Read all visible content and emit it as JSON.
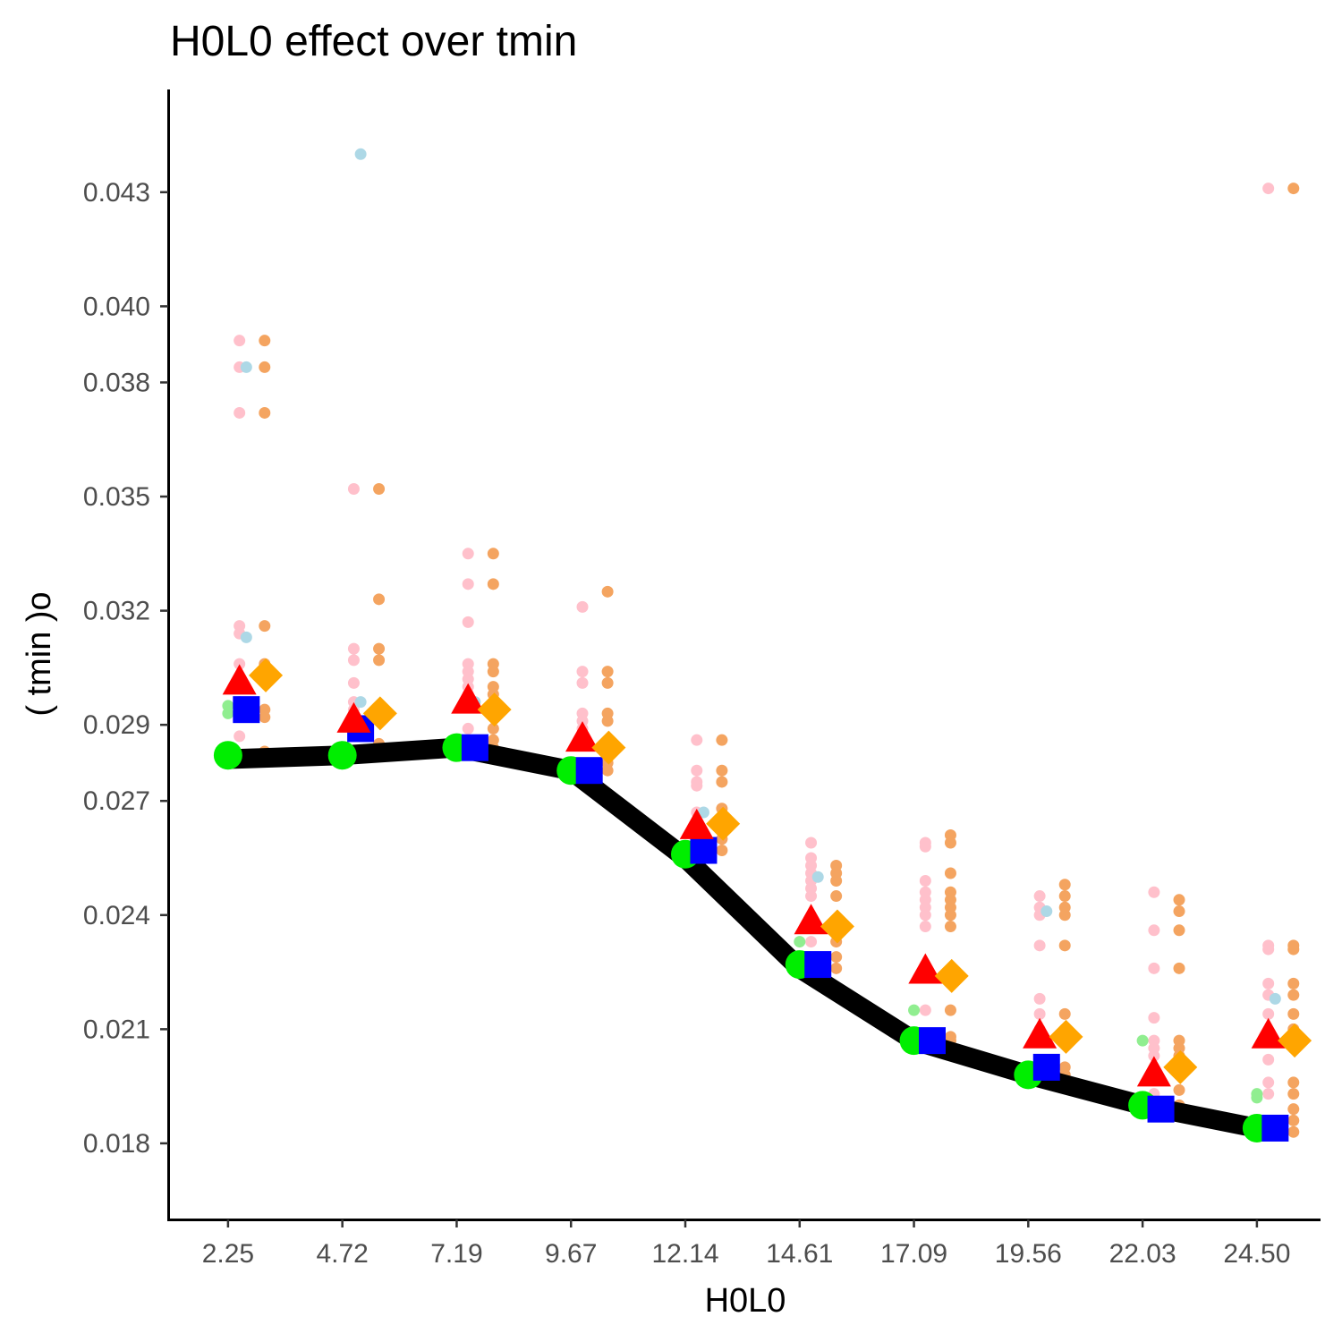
{
  "chart_data": {
    "type": "scatter",
    "title": "H0L0 effect over  tmin",
    "xlabel": "H0L0",
    "ylabel": "( tmin )o",
    "x_ticks": [
      "2.25",
      "4.72",
      "7.19",
      "9.67",
      "12.14",
      "14.61",
      "17.09",
      "19.56",
      "22.03",
      "24.50"
    ],
    "y_ticks": [
      "0.018",
      "0.021",
      "0.024",
      "0.027",
      "0.029",
      "0.032",
      "0.035",
      "0.038",
      "0.040",
      "0.043"
    ],
    "y_tick_values": [
      0.018,
      0.021,
      0.024,
      0.027,
      0.029,
      0.032,
      0.035,
      0.038,
      0.04,
      0.043
    ],
    "ylim": [
      0.016,
      0.0457
    ],
    "grid": false,
    "legend": "none",
    "colors": {
      "line": "#000000",
      "green_circle": "#00ee00",
      "blue_square": "#0000ff",
      "red_triangle": "#ff0000",
      "orange_diamond": "#ffa500",
      "pink_points": "#ffc0cb",
      "orange_points": "#f4a460",
      "lightblue_points": "#add8e6",
      "lightgreen_points": "#90ee90"
    },
    "line": [
      0.0281,
      0.0282,
      0.0284,
      0.0278,
      0.0255,
      0.0226,
      0.0207,
      0.0198,
      0.019,
      0.0184
    ],
    "summary_series": [
      {
        "marker": "circle",
        "color": "#00ee00",
        "values": [
          0.0282,
          0.0282,
          0.0284,
          0.0278,
          0.0256,
          0.0227,
          0.0207,
          0.0198,
          0.019,
          0.0184
        ]
      },
      {
        "marker": "square",
        "color": "#0000ff",
        "values": [
          0.0294,
          0.0289,
          0.0284,
          0.0278,
          0.0257,
          0.0227,
          0.0207,
          0.02,
          0.0189,
          0.0184
        ]
      },
      {
        "marker": "triangle",
        "color": "#ff0000",
        "values": [
          0.0301,
          0.0291,
          0.0296,
          0.0286,
          0.0263,
          0.0238,
          0.0225,
          0.0208,
          0.0198,
          0.0208
        ]
      },
      {
        "marker": "diamond",
        "color": "#ffa500",
        "values": [
          0.0303,
          0.0293,
          0.0294,
          0.0284,
          0.0264,
          0.0237,
          0.0224,
          0.0208,
          0.02,
          0.0207
        ]
      }
    ],
    "raw_points": [
      {
        "color": "#ffc0cb",
        "offset": 0.1,
        "values": [
          [
            0.0391,
            0.0384,
            0.0372,
            0.0316,
            0.0314,
            0.0306,
            0.0296,
            0.0294,
            0.0292,
            0.0287
          ],
          [
            0.0352,
            0.031,
            0.0307,
            0.0301,
            0.0296,
            0.0294,
            0.0291,
            0.0289
          ],
          [
            0.0335,
            0.0327,
            0.0317,
            0.0306,
            0.0304,
            0.0302,
            0.03,
            0.0298,
            0.0289
          ],
          [
            0.0321,
            0.0304,
            0.0301,
            0.0293,
            0.0291,
            0.0289,
            0.0286
          ],
          [
            0.0286,
            0.0278,
            0.0275,
            0.0274,
            0.0267,
            0.0263,
            0.026
          ],
          [
            0.0259,
            0.0255,
            0.0253,
            0.0251,
            0.0249,
            0.0247,
            0.0245,
            0.0233
          ],
          [
            0.0259,
            0.0258,
            0.0249,
            0.0246,
            0.0244,
            0.0242,
            0.024,
            0.0237,
            0.0215
          ],
          [
            0.0245,
            0.0242,
            0.024,
            0.0232,
            0.0218,
            0.0214,
            0.021
          ],
          [
            0.0246,
            0.0236,
            0.0226,
            0.0213,
            0.0207,
            0.0205,
            0.0203,
            0.0193
          ],
          [
            0.0431,
            0.0232,
            0.0231,
            0.0222,
            0.0219,
            0.0214,
            0.0208,
            0.0202,
            0.0196,
            0.0193
          ]
        ]
      },
      {
        "color": "#f4a460",
        "offset": 0.32,
        "values": [
          [
            0.0391,
            0.0384,
            0.0372,
            0.0316,
            0.0306,
            0.0294,
            0.0292,
            0.0283,
            0.0282
          ],
          [
            0.0352,
            0.0323,
            0.031,
            0.0307,
            0.0285,
            0.0283
          ],
          [
            0.0335,
            0.0327,
            0.0306,
            0.0304,
            0.03,
            0.0298,
            0.0289,
            0.0286,
            0.0284
          ],
          [
            0.0325,
            0.0304,
            0.0301,
            0.0293,
            0.0291,
            0.0283,
            0.028,
            0.0278
          ],
          [
            0.0286,
            0.0278,
            0.0275,
            0.0268,
            0.0262,
            0.026,
            0.0257
          ],
          [
            0.0253,
            0.0251,
            0.0249,
            0.0245,
            0.0233,
            0.0229,
            0.0226
          ],
          [
            0.0261,
            0.0259,
            0.0251,
            0.0246,
            0.0244,
            0.0242,
            0.024,
            0.0237,
            0.0215,
            0.0208,
            0.0207
          ],
          [
            0.0248,
            0.0245,
            0.0242,
            0.024,
            0.0232,
            0.0214,
            0.021,
            0.02,
            0.0198
          ],
          [
            0.0244,
            0.0241,
            0.0236,
            0.0226,
            0.0207,
            0.0205,
            0.0203,
            0.0194,
            0.019
          ],
          [
            0.0431,
            0.0232,
            0.0231,
            0.0222,
            0.0219,
            0.0214,
            0.021,
            0.0205,
            0.0196,
            0.0193,
            0.0189,
            0.0186,
            0.0183
          ]
        ]
      },
      {
        "color": "#add8e6",
        "offset": 0.16,
        "values": [
          [
            0.0384,
            0.0313,
            0.0282
          ],
          [
            0.044,
            0.0296,
            0.0282
          ],
          [
            0.0296
          ],
          [],
          [
            0.0267
          ],
          [
            0.025
          ],
          [],
          [
            0.0241
          ],
          [],
          [
            0.0218
          ]
        ]
      },
      {
        "color": "#90ee90",
        "offset": 0.0,
        "values": [
          [
            0.0295,
            0.0293
          ],
          [],
          [],
          [],
          [],
          [
            0.0233
          ],
          [
            0.0215
          ],
          [],
          [
            0.0207
          ],
          [
            0.0193,
            0.0192
          ]
        ]
      }
    ]
  }
}
